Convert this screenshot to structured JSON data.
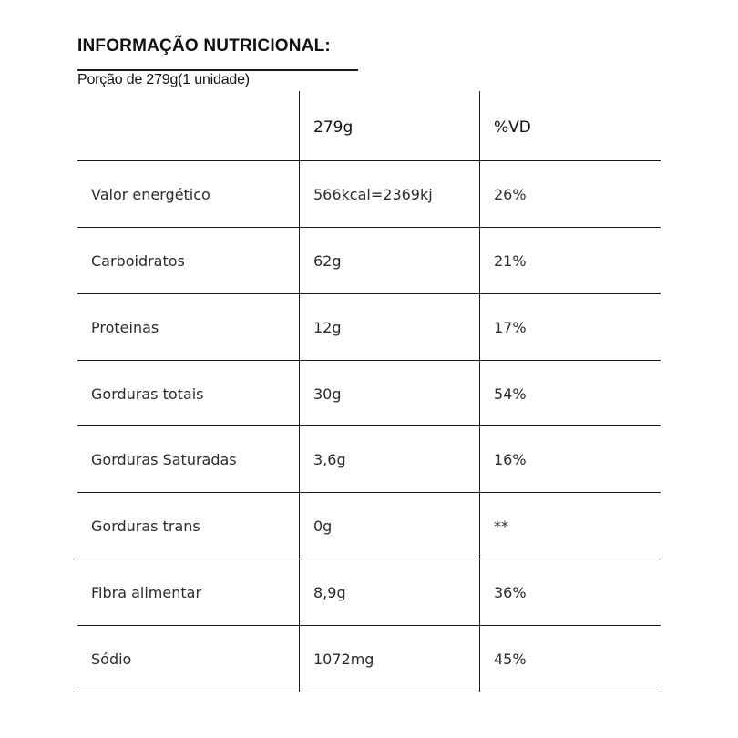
{
  "header": {
    "title": "INFORMAÇÃO NUTRICIONAL:",
    "portion": "Porção de 279g(1 unidade)"
  },
  "table": {
    "columns": [
      "",
      "279g",
      "%VD"
    ],
    "rows": [
      {
        "name": "Valor energético",
        "qty": "566kcal=2369kj",
        "vd": "26%"
      },
      {
        "name": "Carboidratos",
        "qty": "62g",
        "vd": "21%"
      },
      {
        "name": "Proteinas",
        "qty": "12g",
        "vd": "17%"
      },
      {
        "name": "Gorduras totais",
        "qty": "30g",
        "vd": "54%"
      },
      {
        "name": "Gorduras Saturadas",
        "qty": "3,6g",
        "vd": "16%"
      },
      {
        "name": "Gorduras trans",
        "qty": "0g",
        "vd": "**"
      },
      {
        "name": "Fibra alimentar",
        "qty": "8,9g",
        "vd": "36%"
      },
      {
        "name": "Sódio",
        "qty": "1072mg",
        "vd": "45%"
      }
    ]
  }
}
